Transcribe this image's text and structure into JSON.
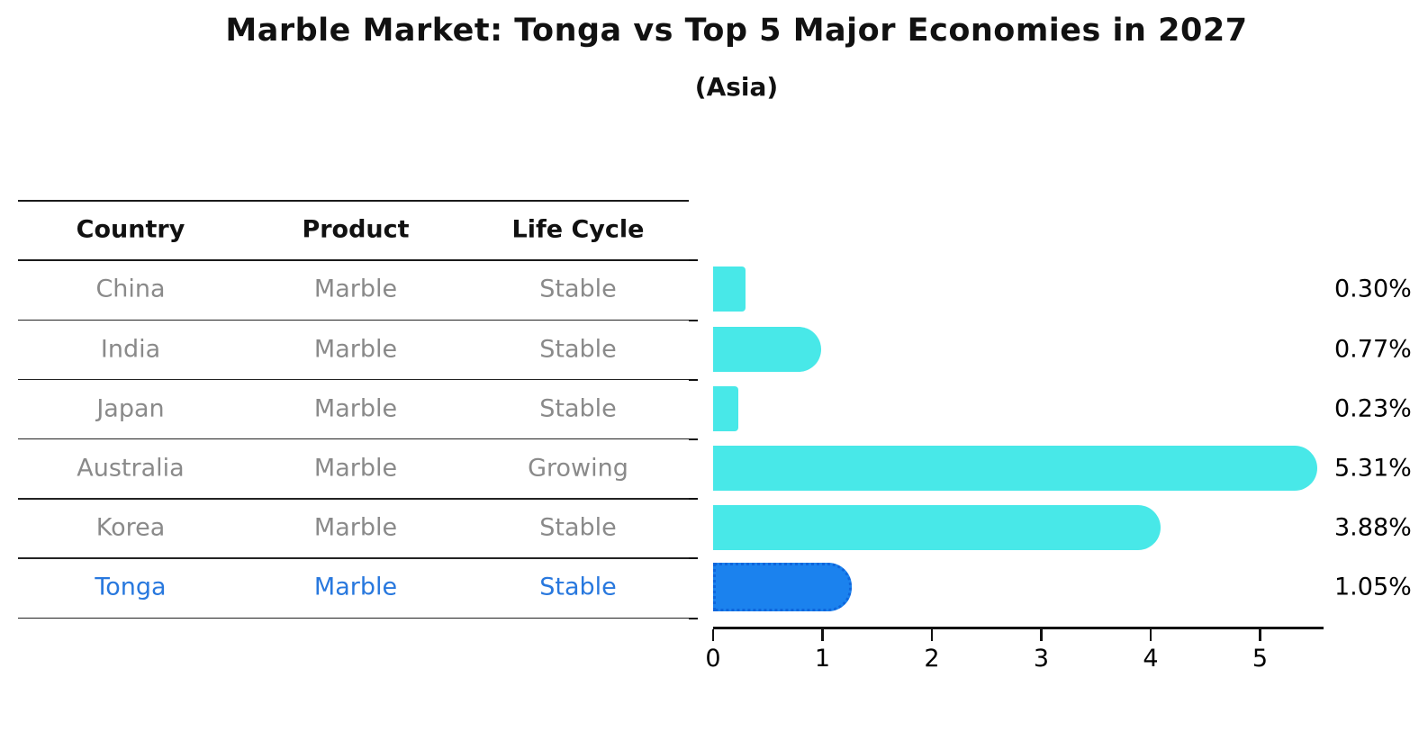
{
  "title": "Marble Market: Tonga vs Top 5 Major Economies in 2027",
  "subtitle": "(Asia)",
  "colors": {
    "bar_default": "#48E8E8",
    "bar_highlight": "#1B82EE",
    "bar_highlight_edge": "#0E66DC",
    "table_text": "#8a8a8a",
    "highlight_text": "#2878DE",
    "axis_text": "#000000",
    "rule_line": "#1a1a1a"
  },
  "chart_data": {
    "type": "bar",
    "orientation": "horizontal",
    "title": "Marble Market: Tonga vs Top 5 Major Economies in 2027",
    "subtitle": "(Asia)",
    "xlabel": "",
    "ylabel": "",
    "xlim": [
      0,
      5.58
    ],
    "x_ticks": [
      0,
      1,
      2,
      3,
      4,
      5
    ],
    "grid": false,
    "legend": "none",
    "categories": [
      "China",
      "India",
      "Japan",
      "Australia",
      "Korea",
      "Tonga"
    ],
    "values": [
      0.3,
      0.77,
      0.23,
      5.31,
      3.88,
      1.05
    ],
    "table": {
      "headers": [
        "Country",
        "Product",
        "Life Cycle"
      ]
    },
    "rows": [
      {
        "country": "China",
        "product": "Marble",
        "life_cycle": "Stable",
        "value": 0.3,
        "value_label": "0.30%",
        "highlight": false
      },
      {
        "country": "India",
        "product": "Marble",
        "life_cycle": "Stable",
        "value": 0.77,
        "value_label": "0.77%",
        "highlight": false
      },
      {
        "country": "Japan",
        "product": "Marble",
        "life_cycle": "Stable",
        "value": 0.23,
        "value_label": "0.23%",
        "highlight": false
      },
      {
        "country": "Australia",
        "product": "Marble",
        "life_cycle": "Growing",
        "value": 5.31,
        "value_label": "5.31%",
        "highlight": false
      },
      {
        "country": "Korea",
        "product": "Marble",
        "life_cycle": "Stable",
        "value": 3.88,
        "value_label": "3.88%",
        "highlight": false
      },
      {
        "country": "Tonga",
        "product": "Marble",
        "life_cycle": "Stable",
        "value": 1.05,
        "value_label": "1.05%",
        "highlight": true
      }
    ]
  }
}
